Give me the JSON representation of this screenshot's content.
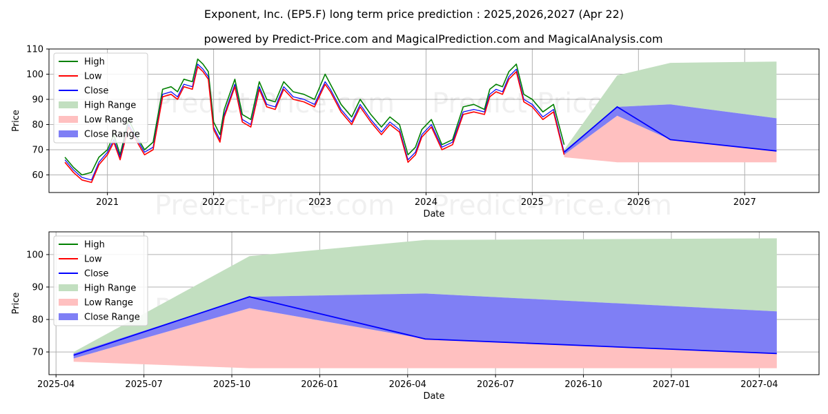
{
  "titles": {
    "line1": "Exponent, Inc. (EP5.F) long term price prediction : 2025,2026,2027 (Apr 22)",
    "line2": "powered by Predict-Price.com and MagicalPrediction.com and MagicalAnalysis.com"
  },
  "watermark": "Predict-Price.com",
  "colors": {
    "high": "#008000",
    "low": "#ff0000",
    "close": "#0000ff",
    "high_range": "#c2dfc0",
    "low_range": "#ffc0c0",
    "close_range": "#7f7ff5"
  },
  "chart_data": [
    {
      "type": "line",
      "title": "Exponent, Inc. (EP5.F) long term price prediction : 2025,2026,2027 (Apr 22)",
      "xlabel": "Date",
      "ylabel": "Price",
      "xlim": [
        2020.45,
        2027.7
      ],
      "ylim": [
        53,
        110
      ],
      "yticks": [
        60,
        70,
        80,
        90,
        100,
        110
      ],
      "xticks": [
        {
          "v": 2021,
          "label": "2021"
        },
        {
          "v": 2022,
          "label": "2022"
        },
        {
          "v": 2023,
          "label": "2023"
        },
        {
          "v": 2024,
          "label": "2024"
        },
        {
          "v": 2025,
          "label": "2025"
        },
        {
          "v": 2026,
          "label": "2026"
        },
        {
          "v": 2027,
          "label": "2027"
        }
      ],
      "legend": [
        "High",
        "Low",
        "Close",
        "High Range",
        "Low Range",
        "Close Range"
      ],
      "legend_position": "top-left",
      "history": {
        "x": [
          2020.6,
          2020.68,
          2020.76,
          2020.85,
          2020.92,
          2021.0,
          2021.06,
          2021.12,
          2021.2,
          2021.28,
          2021.35,
          2021.43,
          2021.52,
          2021.6,
          2021.66,
          2021.72,
          2021.8,
          2021.85,
          2021.9,
          2021.95,
          2022.0,
          2022.06,
          2022.1,
          2022.2,
          2022.27,
          2022.35,
          2022.43,
          2022.5,
          2022.58,
          2022.66,
          2022.75,
          2022.85,
          2022.95,
          2023.05,
          2023.1,
          2023.2,
          2023.3,
          2023.38,
          2023.48,
          2023.58,
          2023.66,
          2023.75,
          2023.83,
          2023.9,
          2023.96,
          2024.05,
          2024.15,
          2024.25,
          2024.35,
          2024.45,
          2024.55,
          2024.6,
          2024.66,
          2024.72,
          2024.78,
          2024.85,
          2024.92,
          2025.0,
          2025.1,
          2025.2,
          2025.3
        ],
        "high": [
          67,
          63,
          60,
          61,
          67,
          70,
          76,
          68,
          82,
          75,
          70,
          73,
          94,
          95,
          93,
          98,
          97,
          106,
          104,
          101,
          81,
          76,
          86,
          98,
          84,
          82,
          97,
          90,
          89,
          97,
          93,
          92,
          90,
          100,
          96,
          88,
          83,
          90,
          84,
          79,
          83,
          80,
          68,
          71,
          78,
          82,
          72,
          74,
          87,
          88,
          86,
          94,
          96,
          95,
          101,
          104,
          92,
          90,
          85,
          88,
          72
        ],
        "low": [
          65,
          61,
          58,
          57,
          64,
          68,
          73,
          66,
          79,
          73,
          68,
          70,
          91,
          92,
          90,
          95,
          94,
          103,
          101,
          98,
          78,
          73,
          83,
          95,
          81,
          79,
          94,
          87,
          86,
          94,
          90,
          89,
          87,
          96,
          93,
          85,
          80,
          87,
          81,
          76,
          80,
          77,
          65,
          68,
          75,
          79,
          70,
          72,
          84,
          85,
          84,
          91,
          93,
          92,
          98,
          101,
          89,
          87,
          82,
          85,
          68
        ],
        "close": [
          66,
          62,
          59,
          58,
          65,
          69,
          74,
          67,
          80,
          74,
          69,
          71,
          92,
          93,
          91,
          96,
          95,
          104,
          102,
          99,
          79,
          74,
          84,
          96,
          82,
          80,
          95,
          88,
          87,
          95,
          91,
          90,
          88,
          97,
          94,
          86,
          81,
          88,
          82,
          77,
          81,
          78,
          66,
          69,
          76,
          80,
          71,
          73,
          85,
          86,
          85,
          92,
          94,
          93,
          99,
          102,
          90,
          88,
          83,
          86,
          69
        ]
      },
      "prediction": {
        "x": [
          2025.3,
          2025.8,
          2026.3,
          2027.3
        ],
        "high_range_upper": [
          70,
          99.5,
          104.5,
          105
        ],
        "high_range_lower": [
          69,
          87,
          88,
          82.5
        ],
        "close_range_upper": [
          69.5,
          87,
          88,
          82.5
        ],
        "close_range_lower": [
          68,
          83.5,
          74,
          69.5
        ],
        "low_range_upper": [
          68,
          83.5,
          74,
          69.5
        ],
        "low_range_lower": [
          67,
          65,
          65,
          65
        ],
        "close": [
          69,
          87,
          74,
          69.5
        ]
      }
    },
    {
      "type": "line",
      "xlabel": "Date",
      "ylabel": "Price",
      "xlim": [
        2025.23,
        2027.42
      ],
      "ylim": [
        63,
        107
      ],
      "yticks": [
        70,
        80,
        90,
        100
      ],
      "xticks": [
        {
          "v": 2025.25,
          "label": "2025-04"
        },
        {
          "v": 2025.5,
          "label": "2025-07"
        },
        {
          "v": 2025.75,
          "label": "2025-10"
        },
        {
          "v": 2026.0,
          "label": "2026-01"
        },
        {
          "v": 2026.25,
          "label": "2026-04"
        },
        {
          "v": 2026.5,
          "label": "2026-07"
        },
        {
          "v": 2026.75,
          "label": "2026-10"
        },
        {
          "v": 2027.0,
          "label": "2027-01"
        },
        {
          "v": 2027.25,
          "label": "2027-04"
        }
      ],
      "legend": [
        "High",
        "Low",
        "Close",
        "High Range",
        "Low Range",
        "Close Range"
      ],
      "legend_position": "top-left",
      "prediction": {
        "x": [
          2025.3,
          2025.8,
          2026.3,
          2027.3
        ],
        "high_range_upper": [
          70,
          99.5,
          104.5,
          105
        ],
        "high_range_lower": [
          69,
          87,
          88,
          82.5
        ],
        "close_range_upper": [
          69.5,
          87,
          88,
          82.5
        ],
        "close_range_lower": [
          68,
          83.5,
          74,
          69.5
        ],
        "low_range_upper": [
          68,
          83.5,
          74,
          69.5
        ],
        "low_range_lower": [
          67,
          65,
          65,
          65
        ],
        "close": [
          69,
          87,
          74,
          69.5
        ]
      }
    }
  ]
}
